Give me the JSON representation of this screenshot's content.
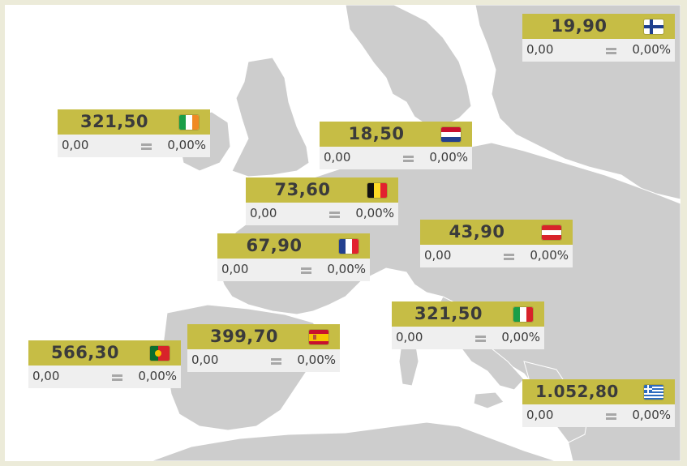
{
  "countries": [
    {
      "id": "finland",
      "price": "19,90",
      "change": "0,00",
      "percent": "0,00%",
      "flag": "finland-flag",
      "trend": "unchanged"
    },
    {
      "id": "ireland",
      "price": "321,50",
      "change": "0,00",
      "percent": "0,00%",
      "flag": "ireland-flag",
      "trend": "unchanged"
    },
    {
      "id": "netherlands",
      "price": "18,50",
      "change": "0,00",
      "percent": "0,00%",
      "flag": "netherlands-flag",
      "trend": "unchanged"
    },
    {
      "id": "belgium",
      "price": "73,60",
      "change": "0,00",
      "percent": "0,00%",
      "flag": "belgium-flag",
      "trend": "unchanged"
    },
    {
      "id": "austria",
      "price": "43,90",
      "change": "0,00",
      "percent": "0,00%",
      "flag": "austria-flag",
      "trend": "unchanged"
    },
    {
      "id": "france",
      "price": "67,90",
      "change": "0,00",
      "percent": "0,00%",
      "flag": "france-flag",
      "trend": "unchanged"
    },
    {
      "id": "italy",
      "price": "321,50",
      "change": "0,00",
      "percent": "0,00%",
      "flag": "italy-flag",
      "trend": "unchanged"
    },
    {
      "id": "spain",
      "price": "399,70",
      "change": "0,00",
      "percent": "0,00%",
      "flag": "spain-flag",
      "trend": "unchanged"
    },
    {
      "id": "portugal",
      "price": "566,30",
      "change": "0,00",
      "percent": "0,00%",
      "flag": "portugal-flag",
      "trend": "unchanged"
    },
    {
      "id": "greece",
      "price": "1.052,80",
      "change": "0,00",
      "percent": "0,00%",
      "flag": "greece-flag",
      "trend": "unchanged"
    }
  ],
  "colors": {
    "land": "#cdcdcd",
    "sea": "#ffffff",
    "header": "#c6bd45",
    "frame": "#ecebd9",
    "value_row": "#efefef"
  }
}
